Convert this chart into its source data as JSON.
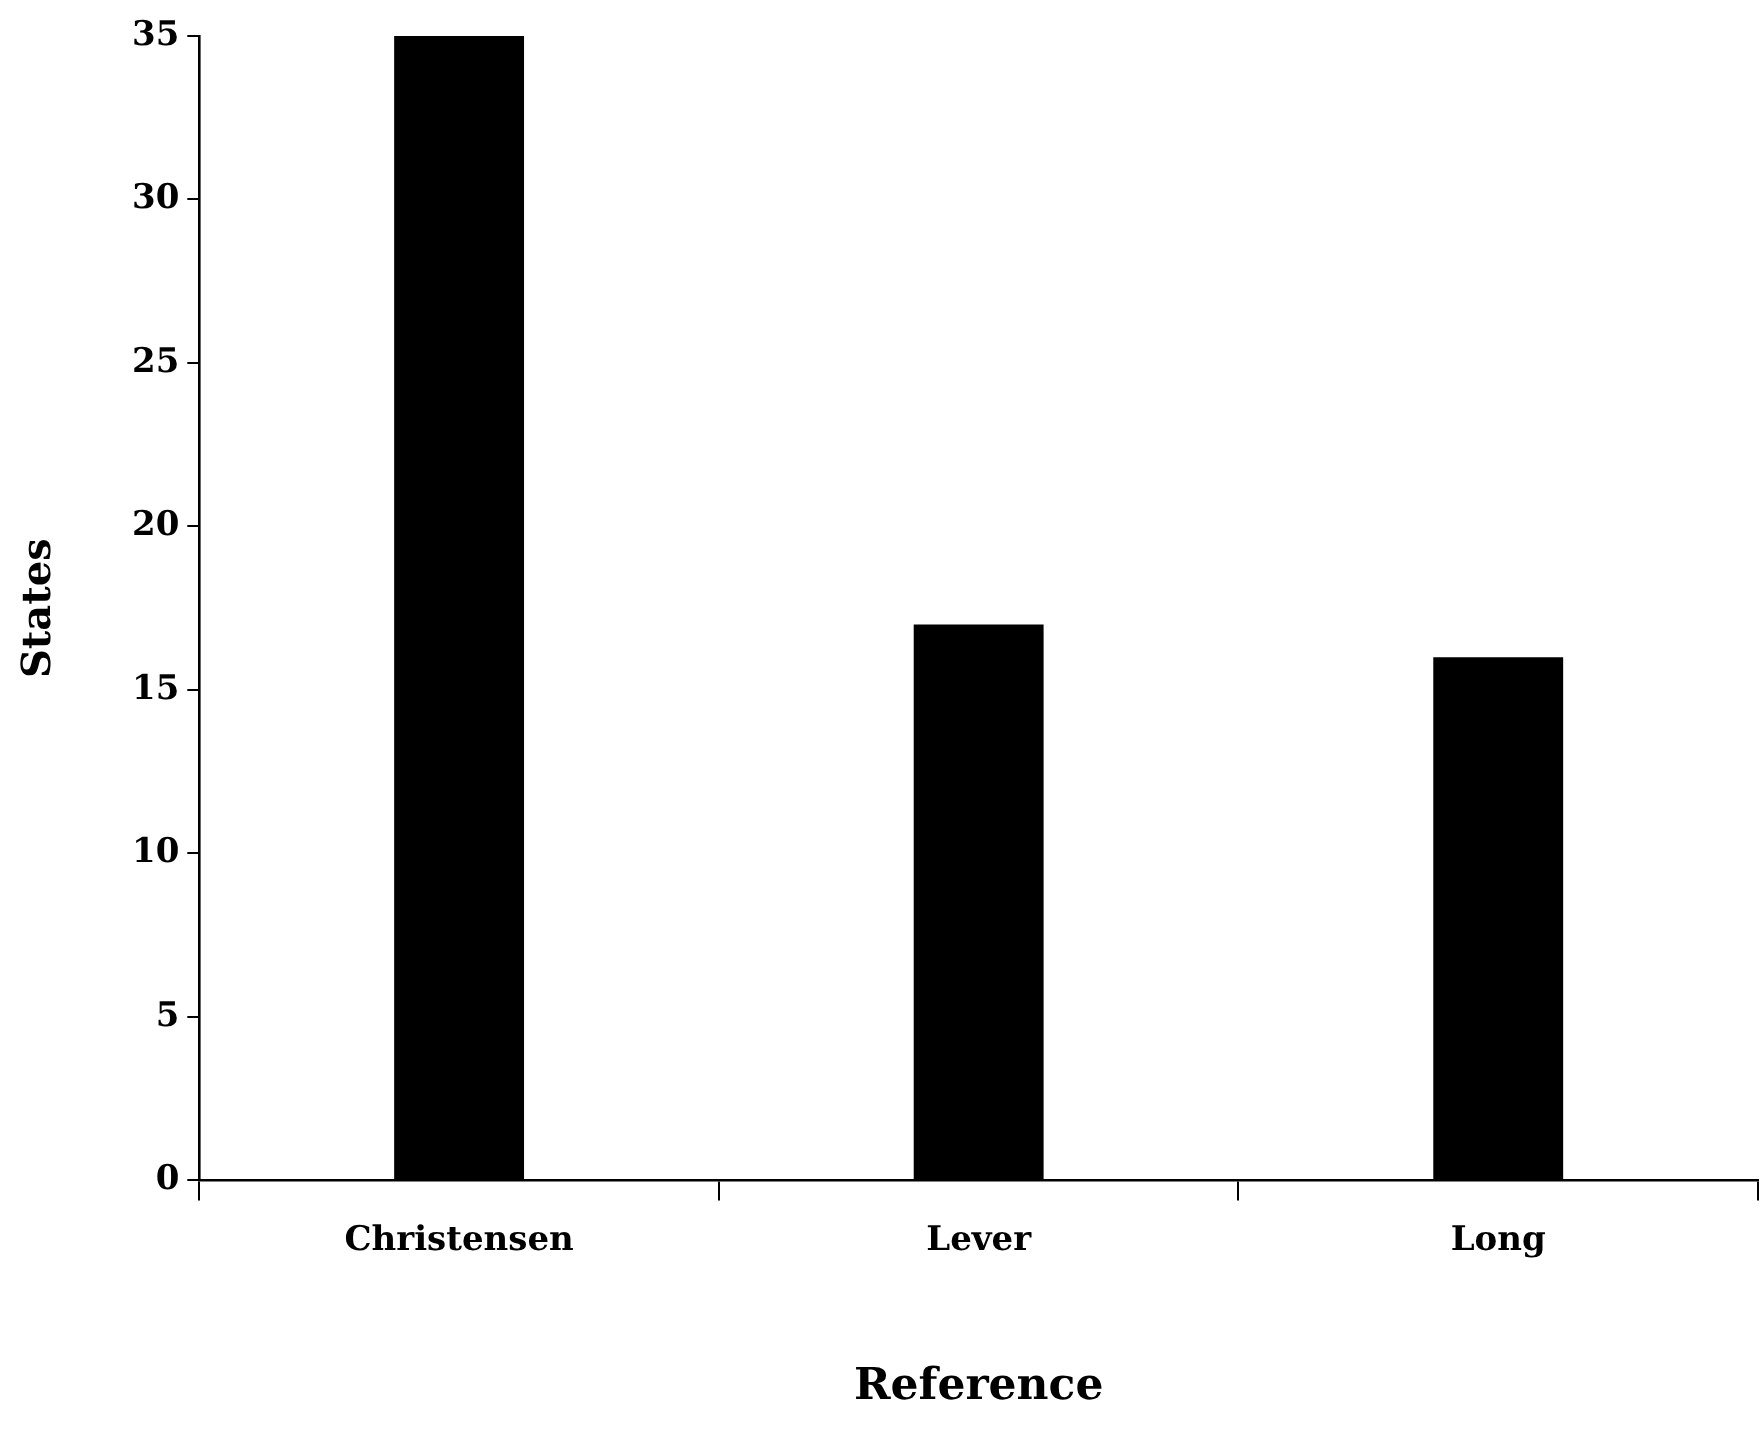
{
  "chart_data": {
    "type": "bar",
    "xlabel": "Reference",
    "ylabel": "States",
    "categories": [
      "Christensen",
      "Lever",
      "Long"
    ],
    "values": [
      35,
      17,
      16
    ],
    "color": "#000000",
    "ylim": [
      0,
      35
    ],
    "yticks": [
      0,
      5,
      10,
      15,
      20,
      25,
      30,
      35
    ],
    "grid": false,
    "legend": false
  }
}
